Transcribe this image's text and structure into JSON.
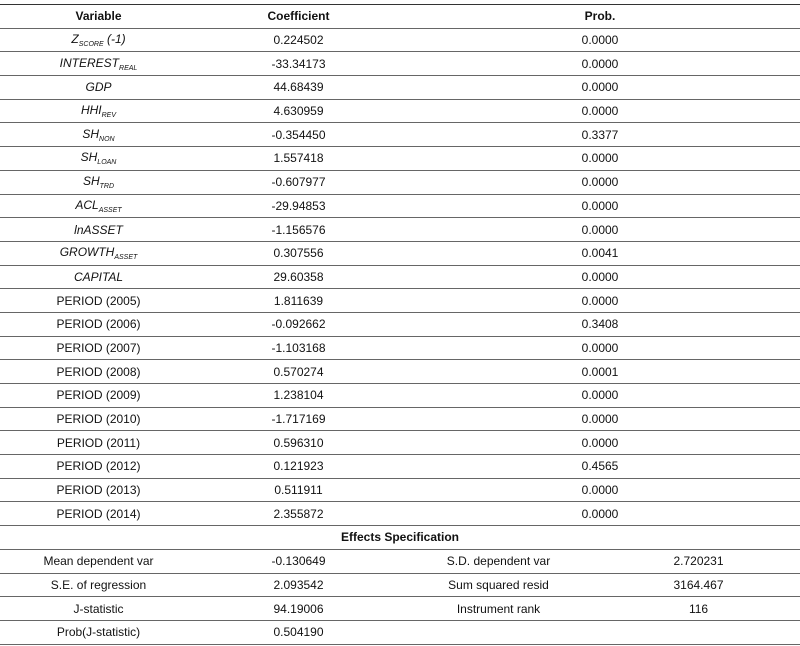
{
  "header": {
    "variable": "Variable",
    "coefficient": "Coefficient",
    "prob": "Prob."
  },
  "rows": [
    {
      "var": "Z",
      "sub": "SCORE",
      "suffix": " (-1)",
      "italic": true,
      "coef": "0.224502",
      "prob": "0.0000"
    },
    {
      "var": "INTEREST",
      "sub": "REAL",
      "suffix": "",
      "italic": true,
      "coef": "-33.34173",
      "prob": "0.0000"
    },
    {
      "var": "GDP",
      "sub": "",
      "suffix": "",
      "italic": true,
      "coef": "44.68439",
      "prob": "0.0000"
    },
    {
      "var": "HHI",
      "sub": "REV",
      "suffix": "",
      "italic": true,
      "coef": "4.630959",
      "prob": "0.0000"
    },
    {
      "var": "SH",
      "sub": "NON",
      "suffix": "",
      "italic": true,
      "coef": "-0.354450",
      "prob": "0.3377"
    },
    {
      "var": "SH",
      "sub": "LOAN",
      "suffix": "",
      "italic": true,
      "coef": "1.557418",
      "prob": "0.0000"
    },
    {
      "var": "SH",
      "sub": "TRD",
      "suffix": "",
      "italic": true,
      "coef": "-0.607977",
      "prob": "0.0000"
    },
    {
      "var": "ACL",
      "sub": "ASSET",
      "suffix": "",
      "italic": true,
      "coef": "-29.94853",
      "prob": "0.0000"
    },
    {
      "var": "lnASSET",
      "sub": "",
      "suffix": "",
      "italic": true,
      "coef": "-1.156576",
      "prob": "0.0000"
    },
    {
      "var": "GROWTH",
      "sub": "ASSET",
      "suffix": "",
      "italic": true,
      "coef": "0.307556",
      "prob": "0.0041"
    },
    {
      "var": "CAPITAL",
      "sub": "",
      "suffix": "",
      "italic": true,
      "coef": "29.60358",
      "prob": "0.0000"
    },
    {
      "var": "PERIOD (2005)",
      "sub": "",
      "suffix": "",
      "italic": false,
      "coef": "1.811639",
      "prob": "0.0000"
    },
    {
      "var": "PERIOD (2006)",
      "sub": "",
      "suffix": "",
      "italic": false,
      "coef": "-0.092662",
      "prob": "0.3408"
    },
    {
      "var": "PERIOD (2007)",
      "sub": "",
      "suffix": "",
      "italic": false,
      "coef": "-1.103168",
      "prob": "0.0000"
    },
    {
      "var": "PERIOD (2008)",
      "sub": "",
      "suffix": "",
      "italic": false,
      "coef": "0.570274",
      "prob": "0.0001"
    },
    {
      "var": "PERIOD (2009)",
      "sub": "",
      "suffix": "",
      "italic": false,
      "coef": "1.238104",
      "prob": "0.0000"
    },
    {
      "var": "PERIOD (2010)",
      "sub": "",
      "suffix": "",
      "italic": false,
      "coef": "-1.717169",
      "prob": "0.0000"
    },
    {
      "var": "PERIOD (2011)",
      "sub": "",
      "suffix": "",
      "italic": false,
      "coef": "0.596310",
      "prob": "0.0000"
    },
    {
      "var": "PERIOD (2012)",
      "sub": "",
      "suffix": "",
      "italic": false,
      "coef": "0.121923",
      "prob": "0.4565"
    },
    {
      "var": "PERIOD (2013)",
      "sub": "",
      "suffix": "",
      "italic": false,
      "coef": "0.511911",
      "prob": "0.0000"
    },
    {
      "var": "PERIOD (2014)",
      "sub": "",
      "suffix": "",
      "italic": false,
      "coef": "2.355872",
      "prob": "0.0000"
    }
  ],
  "effects": {
    "title": "Effects Specification",
    "rows": [
      {
        "l1": "Mean dependent var",
        "v1": "-0.130649",
        "l2": "S.D. dependent var",
        "v2": "2.720231"
      },
      {
        "l1": "S.E. of regression",
        "v1": "2.093542",
        "l2": "Sum squared resid",
        "v2": "3164.467"
      },
      {
        "l1": "J-statistic",
        "v1": "94.19006",
        "l2": "Instrument rank",
        "v2": "116"
      },
      {
        "l1": "Prob(J-statistic)",
        "v1": "0.504190",
        "l2": "",
        "v2": ""
      }
    ]
  }
}
